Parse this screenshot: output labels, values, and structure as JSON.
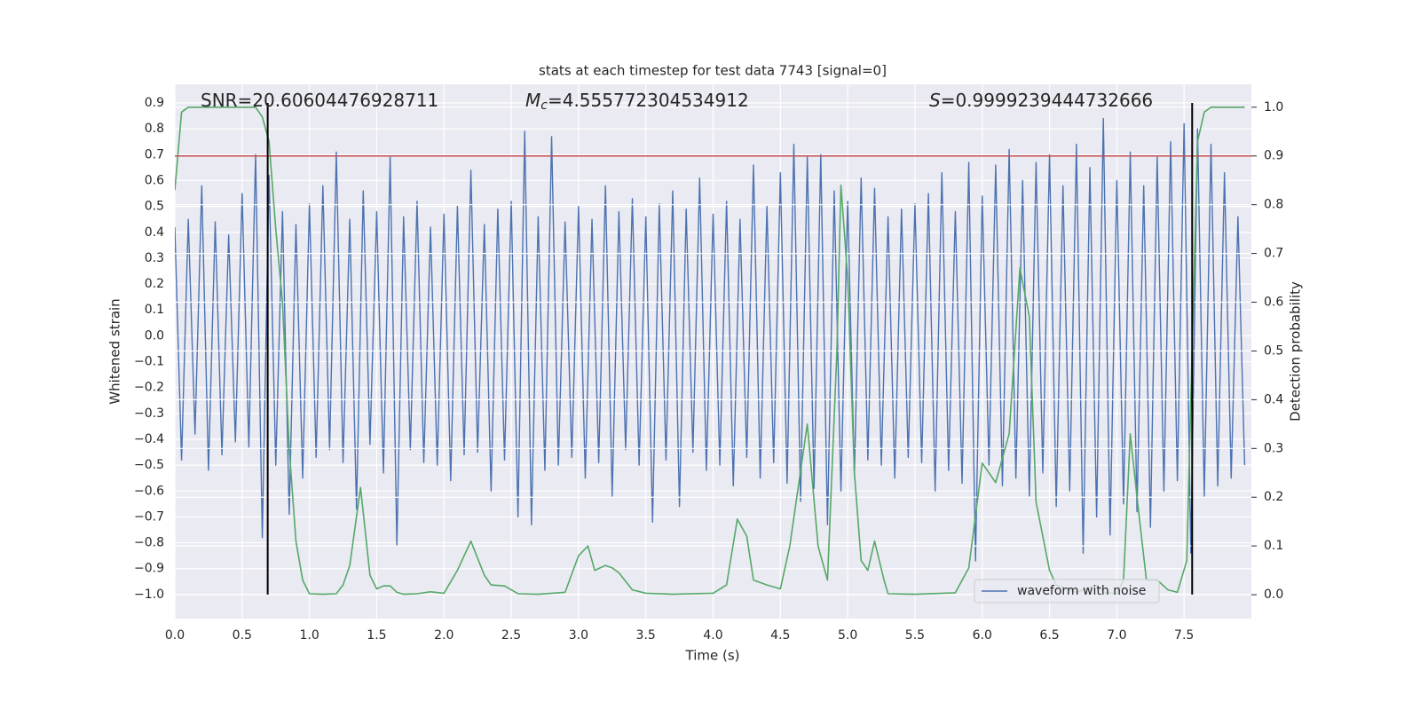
{
  "chart_data": {
    "type": "line",
    "title": "stats at each timestep for test data 7743 [signal=0]",
    "xlabel": "Time (s)",
    "ylabel": "Whitened strain",
    "y2label": "Detection probability",
    "annotations": [
      {
        "text": "SNR=20.60604476928711"
      },
      {
        "symbol": "M",
        "subscript": "c",
        "text": "=4.555772304534912"
      },
      {
        "symbol": "S",
        "text": "=0.9999239444732666"
      }
    ],
    "xlim": [
      0,
      8
    ],
    "xticks": [
      {
        "value": 0,
        "label": "0.0"
      },
      0.5,
      {
        "value": 1,
        "label": "1.0"
      },
      1.5,
      {
        "value": 2,
        "label": "2.0"
      },
      2.5,
      {
        "value": 3,
        "label": "3.0"
      },
      3.5,
      {
        "value": 4,
        "label": "4.0"
      },
      4.5,
      {
        "value": 5,
        "label": "5.0"
      },
      5.5,
      {
        "value": 6,
        "label": "6.0"
      },
      6.5,
      {
        "value": 7,
        "label": "7.0"
      },
      7.5
    ],
    "ylim": [
      -1.093,
      0.972
    ],
    "yticks": [
      {
        "value": -1,
        "label": "−1.0"
      },
      {
        "value": -0.9,
        "label": "−0.9"
      },
      {
        "value": -0.8,
        "label": "−0.8"
      },
      {
        "value": -0.7,
        "label": "−0.7"
      },
      {
        "value": -0.6,
        "label": "−0.6"
      },
      {
        "value": -0.5,
        "label": "−0.5"
      },
      {
        "value": -0.4,
        "label": "−0.4"
      },
      {
        "value": -0.3,
        "label": "−0.3"
      },
      {
        "value": -0.2,
        "label": "−0.2"
      },
      {
        "value": -0.1,
        "label": "−0.1"
      },
      {
        "value": 0,
        "label": "0.0"
      },
      0.1,
      0.2,
      0.3,
      0.4,
      0.5,
      0.6,
      0.7,
      0.8,
      0.9
    ],
    "y2lim": [
      -0.049,
      1.047
    ],
    "y2ticks": [
      {
        "value": 0,
        "label": "0.0"
      },
      0.1,
      0.2,
      0.3,
      0.4,
      0.5,
      0.6,
      0.7,
      0.8,
      0.9,
      {
        "value": 1,
        "label": "1.0"
      }
    ],
    "grid": true,
    "legend": "lower right",
    "series": [
      {
        "name": "waveform with noise",
        "color": "#4c72b0",
        "axis": "y",
        "x": [
          0,
          0.05,
          0.1,
          0.15,
          0.2,
          0.25,
          0.3,
          0.35,
          0.4,
          0.45,
          0.5,
          0.55,
          0.6,
          0.65,
          0.7,
          0.75,
          0.8,
          0.85,
          0.9,
          0.95,
          1,
          1.05,
          1.1,
          1.15,
          1.2,
          1.25,
          1.3,
          1.35,
          1.4,
          1.45,
          1.5,
          1.55,
          1.6,
          1.65,
          1.7,
          1.75,
          1.8,
          1.85,
          1.9,
          1.95,
          2,
          2.05,
          2.1,
          2.15,
          2.2,
          2.25,
          2.3,
          2.35,
          2.4,
          2.45,
          2.5,
          2.55,
          2.6,
          2.65,
          2.7,
          2.75,
          2.8,
          2.85,
          2.9,
          2.95,
          3,
          3.05,
          3.1,
          3.15,
          3.2,
          3.25,
          3.3,
          3.35,
          3.4,
          3.45,
          3.5,
          3.55,
          3.6,
          3.65,
          3.7,
          3.75,
          3.8,
          3.85,
          3.9,
          3.95,
          4,
          4.05,
          4.1,
          4.15,
          4.2,
          4.25,
          4.3,
          4.35,
          4.4,
          4.45,
          4.5,
          4.55,
          4.6,
          4.65,
          4.7,
          4.75,
          4.8,
          4.85,
          4.9,
          4.95,
          5,
          5.05,
          5.1,
          5.15,
          5.2,
          5.25,
          5.3,
          5.35,
          5.4,
          5.45,
          5.5,
          5.55,
          5.6,
          5.65,
          5.7,
          5.75,
          5.8,
          5.85,
          5.9,
          5.95,
          6,
          6.05,
          6.1,
          6.15,
          6.2,
          6.25,
          6.3,
          6.35,
          6.4,
          6.45,
          6.5,
          6.55,
          6.6,
          6.65,
          6.7,
          6.75,
          6.8,
          6.85,
          6.9,
          6.95,
          7,
          7.05,
          7.1,
          7.15,
          7.2,
          7.25,
          7.3,
          7.35,
          7.4,
          7.45,
          7.5,
          7.55,
          7.6,
          7.65,
          7.7,
          7.75,
          7.8,
          7.85,
          7.9,
          7.95
        ],
        "values": [
          0.42,
          -0.48,
          0.45,
          -0.38,
          0.58,
          -0.52,
          0.44,
          -0.46,
          0.39,
          -0.41,
          0.55,
          -0.43,
          0.7,
          -0.78,
          0.62,
          -0.5,
          0.48,
          -0.69,
          0.43,
          -0.55,
          0.51,
          -0.47,
          0.58,
          -0.44,
          0.71,
          -0.49,
          0.45,
          -0.67,
          0.56,
          -0.42,
          0.48,
          -0.53,
          0.69,
          -0.81,
          0.46,
          -0.44,
          0.52,
          -0.49,
          0.42,
          -0.5,
          0.47,
          -0.56,
          0.5,
          -0.46,
          0.64,
          -0.45,
          0.43,
          -0.6,
          0.49,
          -0.48,
          0.52,
          -0.7,
          0.79,
          -0.73,
          0.46,
          -0.52,
          0.77,
          -0.5,
          0.44,
          -0.47,
          0.5,
          -0.55,
          0.45,
          -0.49,
          0.58,
          -0.62,
          0.48,
          -0.44,
          0.53,
          -0.5,
          0.46,
          -0.72,
          0.51,
          -0.48,
          0.56,
          -0.66,
          0.49,
          -0.45,
          0.61,
          -0.52,
          0.47,
          -0.5,
          0.52,
          -0.58,
          0.45,
          -0.47,
          0.66,
          -0.55,
          0.5,
          -0.49,
          0.63,
          -0.57,
          0.74,
          -0.64,
          0.69,
          -0.59,
          0.7,
          -0.73,
          0.56,
          -0.6,
          0.52,
          -0.54,
          0.61,
          -0.48,
          0.57,
          -0.5,
          0.46,
          -0.55,
          0.49,
          -0.47,
          0.51,
          -0.49,
          0.55,
          -0.6,
          0.63,
          -0.52,
          0.48,
          -0.57,
          0.67,
          -0.87,
          0.54,
          -0.5,
          0.66,
          -0.58,
          0.72,
          -0.55,
          0.6,
          -0.62,
          0.67,
          -0.53,
          0.7,
          -0.66,
          0.58,
          -0.6,
          0.74,
          -0.84,
          0.65,
          -0.7,
          0.84,
          -0.77,
          0.6,
          -0.65,
          0.71,
          -0.68,
          0.58,
          -0.74,
          0.69,
          -0.6,
          0.75,
          -0.56,
          0.82,
          -0.84,
          0.8,
          -0.62,
          0.74,
          -0.58,
          0.63,
          -0.55,
          0.46,
          -0.5
        ]
      },
      {
        "color": "#55a868",
        "axis": "y2",
        "x": [
          0,
          0.05,
          0.1,
          0.2,
          0.3,
          0.4,
          0.5,
          0.6,
          0.65,
          0.7,
          0.75,
          0.8,
          0.85,
          0.9,
          0.95,
          1.0,
          1.1,
          1.2,
          1.25,
          1.3,
          1.38,
          1.45,
          1.5,
          1.55,
          1.6,
          1.65,
          1.7,
          1.8,
          1.9,
          2.0,
          2.1,
          2.2,
          2.3,
          2.35,
          2.45,
          2.55,
          2.7,
          2.9,
          3.0,
          3.07,
          3.12,
          3.2,
          3.25,
          3.3,
          3.4,
          3.5,
          3.7,
          4.0,
          4.1,
          4.18,
          4.25,
          4.3,
          4.4,
          4.5,
          4.57,
          4.7,
          4.78,
          4.85,
          4.92,
          4.95,
          5.0,
          5.05,
          5.1,
          5.15,
          5.2,
          5.27,
          5.3,
          5.5,
          5.8,
          5.9,
          6.0,
          6.1,
          6.2,
          6.28,
          6.35,
          6.4,
          6.5,
          6.55,
          6.7,
          6.85,
          6.9,
          7.0,
          7.05,
          7.1,
          7.15,
          7.22,
          7.3,
          7.38,
          7.45,
          7.52,
          7.55,
          7.6,
          7.65,
          7.7,
          7.95
        ],
        "values": [
          0.83,
          0.99,
          1,
          1,
          1,
          1,
          1,
          1,
          0.98,
          0.93,
          0.75,
          0.6,
          0.3,
          0.11,
          0.03,
          0.002,
          0.001,
          0.002,
          0.02,
          0.06,
          0.22,
          0.04,
          0.012,
          0.018,
          0.018,
          0.005,
          0.001,
          0.002,
          0.006,
          0.003,
          0.05,
          0.11,
          0.04,
          0.02,
          0.018,
          0.002,
          0.001,
          0.005,
          0.08,
          0.1,
          0.05,
          0.06,
          0.055,
          0.045,
          0.01,
          0.003,
          0.001,
          0.003,
          0.02,
          0.155,
          0.12,
          0.03,
          0.02,
          0.012,
          0.1,
          0.35,
          0.1,
          0.03,
          0.5,
          0.84,
          0.65,
          0.25,
          0.07,
          0.05,
          0.11,
          0.03,
          0.002,
          0.001,
          0.004,
          0.055,
          0.27,
          0.23,
          0.33,
          0.67,
          0.57,
          0.19,
          0.05,
          0.02,
          0.005,
          0.02,
          0.005,
          0.002,
          0.03,
          0.33,
          0.2,
          0.03,
          0.03,
          0.01,
          0.005,
          0.07,
          0.4,
          0.93,
          0.99,
          1,
          1
        ]
      }
    ],
    "hlines": [
      {
        "y": 0.9,
        "axis": "y2",
        "color": "#c44e52"
      }
    ],
    "vlines": {
      "x": [
        0.69,
        7.56
      ],
      "ymin": -1.0,
      "ymax": 0.9,
      "color": "#000000"
    }
  }
}
